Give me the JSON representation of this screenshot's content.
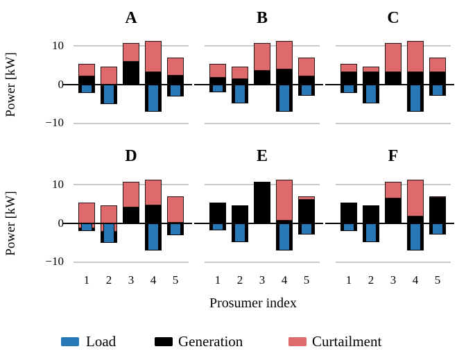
{
  "figure": {
    "ylabel": "Power [kW]",
    "xlabel": "Prosumer index",
    "ytick_labels": [
      "10",
      "0",
      "−10"
    ],
    "xtick_labels": [
      "1",
      "2",
      "3",
      "4",
      "5"
    ],
    "colors": {
      "gridline": "#c9c9c9",
      "zero_line": "#000000",
      "background": "#ffffff"
    }
  },
  "legend": [
    {
      "name": "load",
      "label": "Load",
      "color": "#2878b5"
    },
    {
      "name": "generation",
      "label": "Generation",
      "color": "#000000"
    },
    {
      "name": "curtailment",
      "label": "Curtailment",
      "color": "#df6a6b"
    }
  ],
  "chart_data": {
    "type": "bar",
    "title": "",
    "xlabel": "Prosumer index",
    "ylabel": "Power [kW]",
    "categories": [
      1,
      2,
      3,
      4,
      5
    ],
    "y_ticks": [
      10,
      0,
      -10
    ],
    "y_gridlines": [
      10,
      -10
    ],
    "ylim": [
      -11.5,
      12.5
    ],
    "legend_position": "bottom",
    "encoding": "Per prosumer: blue Load bar spans 0 to load (negative, narrow, drawn on top); black Generation bar spans load to generation_top (wide); red Curtailment bar spans generation_top to total_top (wide); thick black zero line drawn over bars; light gridlines at +10/-10 only.",
    "panels": [
      {
        "label": "A",
        "load": [
          -2.1,
          -5.0,
          0,
          -7.0,
          -3.0
        ],
        "generation_top": [
          2.1,
          -0.3,
          5.9,
          3.2,
          2.4
        ],
        "total_top": [
          5.4,
          4.6,
          10.7,
          11.3,
          7.0
        ]
      },
      {
        "label": "B",
        "load": [
          -1.9,
          -4.9,
          0,
          -7.0,
          -2.9
        ],
        "generation_top": [
          1.8,
          1.5,
          3.6,
          3.9,
          2.1
        ],
        "total_top": [
          5.4,
          4.6,
          10.7,
          11.3,
          7.0
        ]
      },
      {
        "label": "C",
        "load": [
          -2.1,
          -4.9,
          0,
          -7.0,
          -2.9
        ],
        "generation_top": [
          3.2,
          3.2,
          3.2,
          3.2,
          3.2
        ],
        "total_top": [
          5.4,
          4.6,
          10.7,
          11.3,
          7.0
        ]
      },
      {
        "label": "D",
        "load": [
          -1.9,
          -5.0,
          0,
          -7.0,
          -3.0
        ],
        "generation_top": [
          -1.2,
          -2.2,
          4.1,
          4.7,
          0.1
        ],
        "total_top": [
          5.4,
          4.6,
          10.7,
          11.3,
          7.0
        ]
      },
      {
        "label": "E",
        "load": [
          -1.8,
          -4.9,
          0,
          -7.0,
          -2.8
        ],
        "generation_top": [
          5.4,
          4.6,
          10.7,
          0.7,
          6.0
        ],
        "total_top": [
          5.4,
          4.6,
          10.7,
          11.3,
          7.0
        ]
      },
      {
        "label": "F",
        "load": [
          -1.9,
          -4.9,
          0,
          -7.0,
          -2.8
        ],
        "generation_top": [
          5.4,
          4.6,
          6.4,
          1.7,
          6.6
        ],
        "total_top": [
          5.4,
          4.6,
          10.7,
          11.3,
          6.9
        ]
      }
    ]
  }
}
